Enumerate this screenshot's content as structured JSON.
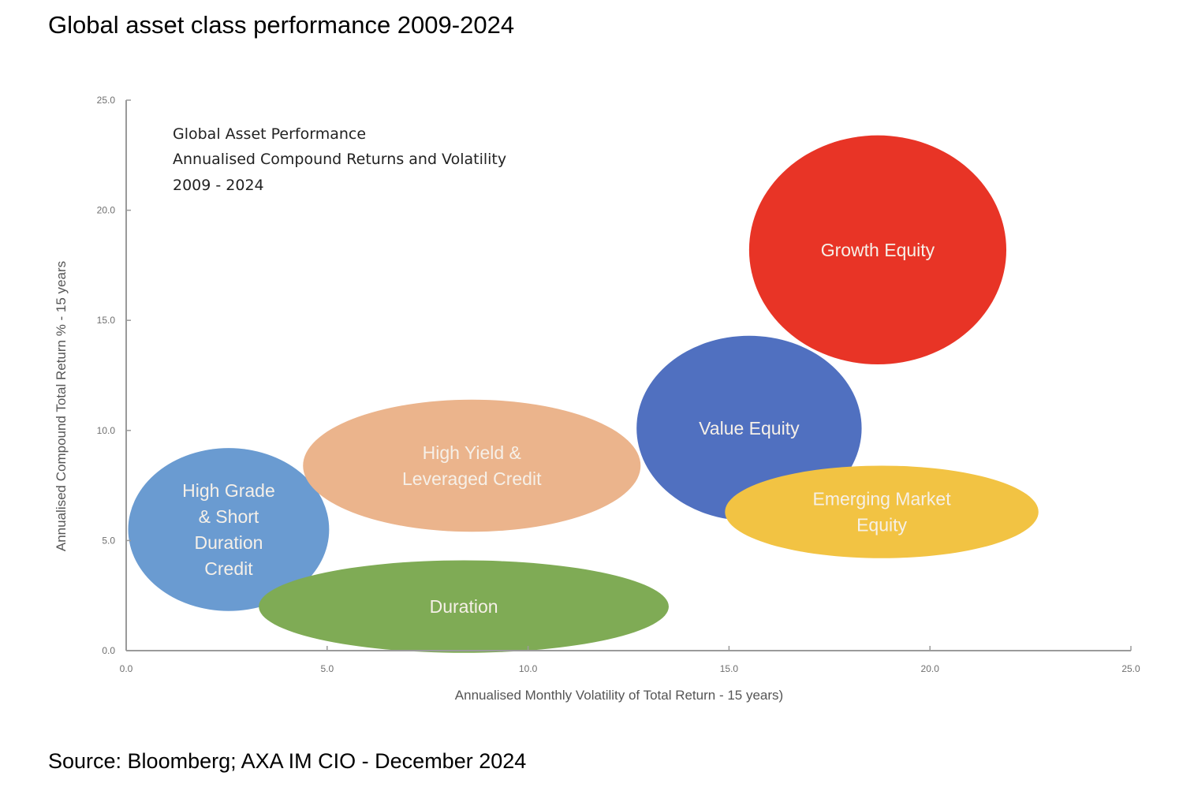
{
  "page": {
    "title": "Global asset class performance 2009-2024",
    "source": "Source: Bloomberg; AXA IM CIO - December 2024"
  },
  "chart_data": {
    "type": "bubble",
    "title_lines": [
      "Global Asset Performance",
      "Annualised Compound Returns and Volatility",
      "2009 - 2024"
    ],
    "xlabel": "Annualised Monthly Volatility of Total Return    - 15 years)",
    "ylabel": "Annualised Compound Total Return %    - 15 years",
    "xlim": [
      0,
      25
    ],
    "ylim": [
      0,
      25
    ],
    "x_ticks": [
      0,
      5,
      10,
      15,
      20,
      25
    ],
    "y_ticks": [
      0,
      5,
      10,
      15,
      20,
      25
    ],
    "x_tick_labels": [
      "0.0",
      "5.0",
      "10.0",
      "15.0",
      "20.0",
      "25.0"
    ],
    "y_tick_labels": [
      "0.0",
      "5.0",
      "10.0",
      "15.0",
      "20.0",
      "25.0"
    ],
    "grid": false,
    "series": [
      {
        "name": "High Grade & Short Duration Credit",
        "label_lines": [
          "High Grade",
          "& Short",
          "Duration",
          "Credit"
        ],
        "x": 2.55,
        "y": 5.5,
        "x_spread": 2.5,
        "y_spread": 3.7,
        "color": "#6a9bd1"
      },
      {
        "name": "Duration",
        "label_lines": [
          "Duration"
        ],
        "x": 8.4,
        "y": 2.0,
        "x_spread": 5.1,
        "y_spread": 2.1,
        "color": "#7fab55"
      },
      {
        "name": "High Yield & Leveraged Credit",
        "label_lines": [
          "High Yield &",
          "Leveraged Credit"
        ],
        "x": 8.6,
        "y": 8.4,
        "x_spread": 4.2,
        "y_spread": 3.0,
        "color": "#ebb48c"
      },
      {
        "name": "Growth Equity",
        "label_lines": [
          "Growth Equity"
        ],
        "x": 18.7,
        "y": 18.2,
        "x_spread": 3.2,
        "y_spread": 5.2,
        "color": "#e83426"
      },
      {
        "name": "Value Equity",
        "label_lines": [
          "Value Equity"
        ],
        "x": 15.5,
        "y": 10.1,
        "x_spread": 2.8,
        "y_spread": 4.2,
        "color": "#5070c0"
      },
      {
        "name": "Emerging Market Equity",
        "label_lines": [
          "Emerging Market",
          "Equity"
        ],
        "x": 18.8,
        "y": 6.3,
        "x_spread": 3.9,
        "y_spread": 2.1,
        "color": "#f2c343"
      }
    ]
  }
}
